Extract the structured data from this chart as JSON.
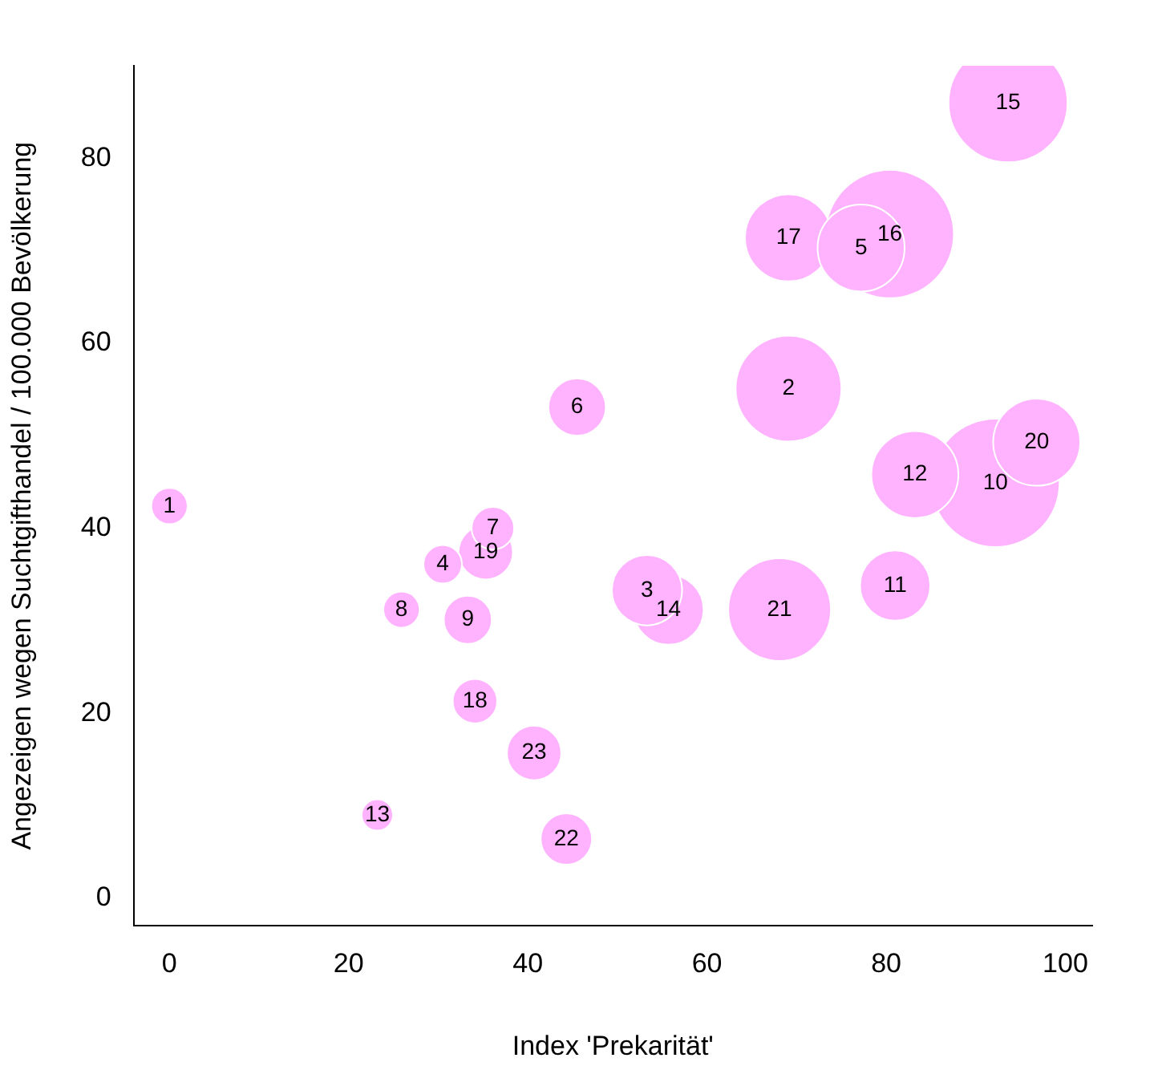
{
  "chart_data": {
    "type": "bubble",
    "xlabel": "Index 'Prekarität'",
    "ylabel": "Angezeigen wegen Suchtgifthandel / 100.000 Bevölkerung",
    "x": [
      0,
      69.1,
      53.3,
      30.5,
      77.2,
      45.5,
      36.1,
      25.9,
      33.3,
      92.2,
      81.0,
      83.2,
      23.2,
      55.7,
      93.6,
      80.4,
      69.1,
      34.1,
      35.3,
      96.8,
      68.1,
      44.3,
      40.7
    ],
    "values": [
      42.4,
      55.1,
      33.3,
      36.1,
      70.3,
      53.1,
      40.0,
      31.2,
      30.1,
      44.9,
      33.8,
      45.8,
      9.0,
      31.2,
      86.0,
      71.8,
      71.4,
      21.3,
      37.4,
      49.3,
      31.2,
      6.4,
      15.7
    ],
    "sizes": [
      0.08,
      0.68,
      0.3,
      0.09,
      0.46,
      0.2,
      0.11,
      0.08,
      0.14,
      1,
      0.3,
      0.46,
      0.06,
      0.3,
      0.86,
      1,
      0.46,
      0.12,
      0.18,
      0.46,
      0.64,
      0.16,
      0.18
    ],
    "color": "#ffb3ff",
    "xlim": [
      -4,
      103
    ],
    "ylim": [
      -3,
      90
    ],
    "xticks": [
      0,
      20,
      40,
      60,
      80,
      100
    ],
    "yticks": [
      0,
      20,
      40,
      60,
      80
    ],
    "grid": false,
    "legend": false,
    "annotations": [
      {
        "text": "1",
        "x": 0,
        "y": 42.4
      },
      {
        "text": "2",
        "x": 69.1,
        "y": 55.1
      },
      {
        "text": "3",
        "x": 53.3,
        "y": 33.3
      },
      {
        "text": "4",
        "x": 30.5,
        "y": 36.1
      },
      {
        "text": "5",
        "x": 77.2,
        "y": 70.3
      },
      {
        "text": "6",
        "x": 45.5,
        "y": 53.1
      },
      {
        "text": "7",
        "x": 36.1,
        "y": 40.0
      },
      {
        "text": "8",
        "x": 25.9,
        "y": 31.2
      },
      {
        "text": "9",
        "x": 33.3,
        "y": 30.1
      },
      {
        "text": "10",
        "x": 92.2,
        "y": 44.9
      },
      {
        "text": "11",
        "x": 81.0,
        "y": 33.8
      },
      {
        "text": "12",
        "x": 83.2,
        "y": 45.8
      },
      {
        "text": "13",
        "x": 23.2,
        "y": 9.0
      },
      {
        "text": "14",
        "x": 55.7,
        "y": 31.2
      },
      {
        "text": "15",
        "x": 93.6,
        "y": 86.0
      },
      {
        "text": "16",
        "x": 80.4,
        "y": 71.8
      },
      {
        "text": "17",
        "x": 69.1,
        "y": 71.4
      },
      {
        "text": "18",
        "x": 34.1,
        "y": 21.3
      },
      {
        "text": "19",
        "x": 35.3,
        "y": 37.4
      },
      {
        "text": "20",
        "x": 96.8,
        "y": 49.3
      },
      {
        "text": "21",
        "x": 68.1,
        "y": 31.2
      },
      {
        "text": "22",
        "x": 44.3,
        "y": 6.4
      },
      {
        "text": "23",
        "x": 40.7,
        "y": 15.7
      }
    ]
  }
}
